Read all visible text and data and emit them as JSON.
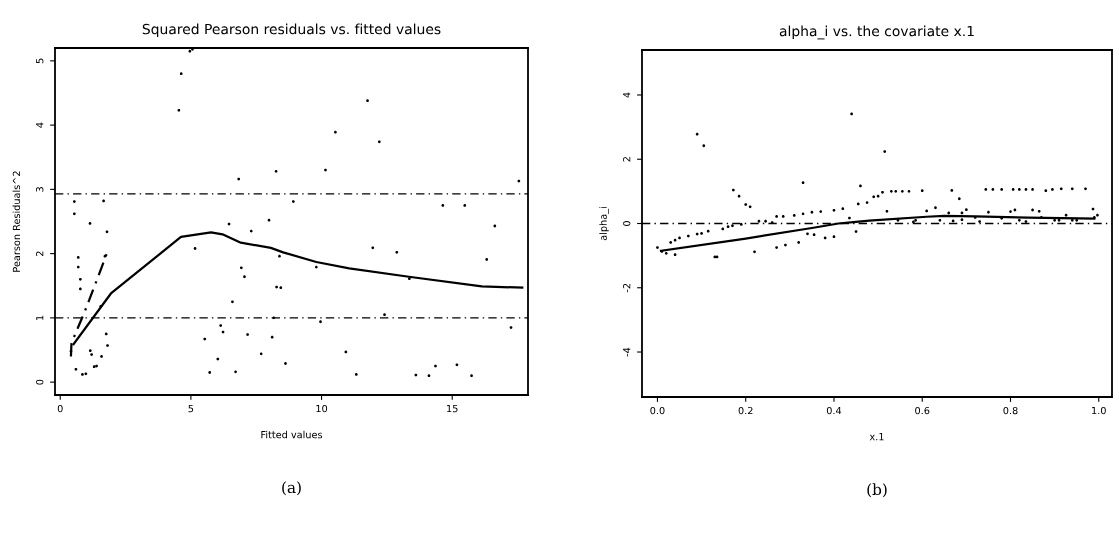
{
  "chart_data": [
    {
      "type": "scatter",
      "title": "Squared Pearson residuals vs. fitted values",
      "xlabel": "Fitted values",
      "ylabel": "Pearson Residuals^2",
      "xlim": [
        -0.2,
        17.9
      ],
      "ylim": [
        -0.2,
        5.2
      ],
      "xticks": [
        0,
        5,
        10,
        15
      ],
      "yticks": [
        0,
        1,
        2,
        3,
        4,
        5
      ],
      "grid": false,
      "legend": false,
      "series": [
        {
          "marker": "circle",
          "color": "#000000",
          "x": [
            0.54,
            0.54,
            1.14,
            1.66,
            1.79,
            0.69,
            0.69,
            0.77,
            0.77,
            1.71,
            1.55,
            1.76,
            1.81,
            1.15,
            1.2,
            1.58,
            0.6,
            0.85,
            0.98,
            1.3,
            1.39,
            0.41,
            4.54,
            4.63,
            4.96,
            5.06,
            5.16,
            5.53,
            5.72,
            6.03,
            6.14,
            6.23,
            6.46,
            6.59,
            6.71,
            6.83,
            6.93,
            7.05,
            7.17,
            7.31,
            7.69,
            7.99,
            8.11,
            8.26,
            8.39,
            8.28,
            8.44,
            8.17,
            8.62,
            8.92,
            9.8,
            9.96,
            10.15,
            10.53,
            10.93,
            11.33,
            11.76,
            11.96,
            12.21,
            12.41,
            12.88,
            13.36,
            13.61,
            14.11,
            14.36,
            14.64,
            15.18,
            15.48,
            15.74,
            16.32,
            16.63,
            17.25,
            17.55
          ],
          "values": [
            2.81,
            2.62,
            2.47,
            2.82,
            2.34,
            1.94,
            1.79,
            1.6,
            1.45,
            1.96,
            1.18,
            0.75,
            0.57,
            0.49,
            0.43,
            0.4,
            0.2,
            0.12,
            0.13,
            0.24,
            0.25,
            0.48,
            4.23,
            4.8,
            5.15,
            5.18,
            2.08,
            0.67,
            0.15,
            0.36,
            0.88,
            0.78,
            2.46,
            1.25,
            0.16,
            3.16,
            1.78,
            1.64,
            0.74,
            2.35,
            0.44,
            2.52,
            0.7,
            3.28,
            1.96,
            1.48,
            1.47,
            1.0,
            0.29,
            2.81,
            1.79,
            0.94,
            3.3,
            3.89,
            0.47,
            0.12,
            4.38,
            2.09,
            3.74,
            1.05,
            2.02,
            1.61,
            0.11,
            0.1,
            0.25,
            2.75,
            0.27,
            2.75,
            0.1,
            1.91,
            2.43,
            0.85,
            3.13
          ]
        },
        {
          "type": "line",
          "color": "#000000",
          "line_style": "solid",
          "x": [
            0.51,
            1.94,
            4.62,
            5.77,
            6.21,
            6.91,
            8.06,
            8.53,
            9.8,
            11.06,
            13.34,
            16.13,
            17.68
          ],
          "values": [
            0.59,
            1.38,
            2.26,
            2.33,
            2.3,
            2.17,
            2.09,
            2.02,
            1.87,
            1.77,
            1.64,
            1.49,
            1.47
          ]
        },
        {
          "type": "line",
          "color": "#000000",
          "line_style": "dashed",
          "x": [
            0.41,
            0.43,
            0.92,
            1.43,
            1.79
          ],
          "values": [
            0.4,
            0.61,
            1.08,
            1.62,
            2.01
          ]
        }
      ],
      "ref_lines": [
        {
          "axis": "y",
          "value": 2.93,
          "line_style": "dashed",
          "color": "#000000"
        },
        {
          "axis": "y",
          "value": 1.0,
          "line_style": "dashed",
          "color": "#000000"
        }
      ],
      "annotations": [
        "(a)"
      ]
    },
    {
      "type": "scatter",
      "title": "alpha_i vs. the covariate x.1",
      "xlabel": "x.1",
      "ylabel": "alpha_i",
      "xlim": [
        -0.035,
        1.03
      ],
      "ylim": [
        -5.4,
        5.4
      ],
      "xticks": [
        {
          "value": 0,
          "label": "0.0"
        },
        0.2,
        0.4,
        0.6,
        0.8,
        {
          "value": 1,
          "label": "1.0"
        }
      ],
      "yticks": [
        {
          "value": -4,
          "label": "-4"
        },
        {
          "value": -2,
          "label": "-2"
        },
        0,
        2,
        4
      ],
      "grid": false,
      "legend": false,
      "series": [
        {
          "marker": "circle",
          "color": "#000000",
          "x": [
            0.0,
            0.01,
            0.02,
            0.04,
            0.03,
            0.04,
            0.05,
            0.07,
            0.09,
            0.1,
            0.115,
            0.13,
            0.135,
            0.09,
            0.105,
            0.148,
            0.16,
            0.17,
            0.19,
            0.172,
            0.185,
            0.2,
            0.21,
            0.22,
            0.23,
            0.245,
            0.26,
            0.27,
            0.285,
            0.31,
            0.33,
            0.35,
            0.37,
            0.4,
            0.42,
            0.27,
            0.29,
            0.32,
            0.33,
            0.34,
            0.355,
            0.38,
            0.4,
            0.435,
            0.44,
            0.45,
            0.515,
            0.46,
            0.455,
            0.475,
            0.49,
            0.5,
            0.51,
            0.53,
            0.54,
            0.555,
            0.57,
            0.6,
            0.667,
            0.744,
            0.76,
            0.78,
            0.806,
            0.82,
            0.835,
            0.85,
            0.88,
            0.895,
            0.915,
            0.94,
            0.97,
            0.52,
            0.545,
            0.58,
            0.61,
            0.63,
            0.66,
            0.684,
            0.69,
            0.7,
            0.75,
            0.8,
            0.81,
            0.85,
            0.865,
            0.987,
            0.585,
            0.64,
            0.67,
            0.69,
            0.72,
            0.73,
            0.78,
            0.82,
            0.835,
            0.87,
            0.9,
            0.91,
            0.926,
            0.94,
            0.95,
            0.99,
            0.997
          ],
          "values": [
            -0.75,
            -0.87,
            -0.93,
            -0.97,
            -0.59,
            -0.52,
            -0.45,
            -0.39,
            -0.33,
            -0.31,
            -0.24,
            -1.04,
            -1.04,
            2.78,
            2.42,
            -0.17,
            -0.1,
            -0.07,
            -0.03,
            1.04,
            0.85,
            0.59,
            0.52,
            -0.88,
            0.07,
            0.07,
            0.03,
            0.22,
            0.22,
            0.25,
            0.3,
            0.35,
            0.37,
            0.41,
            0.46,
            -0.75,
            -0.67,
            -0.59,
            1.27,
            -0.32,
            -0.35,
            -0.45,
            -0.41,
            0.17,
            3.41,
            -0.25,
            2.24,
            1.17,
            0.61,
            0.65,
            0.83,
            0.85,
            0.97,
            1.0,
            1.0,
            1.0,
            1.0,
            1.02,
            1.03,
            1.06,
            1.06,
            1.06,
            1.06,
            1.06,
            1.06,
            1.06,
            1.02,
            1.06,
            1.08,
            1.08,
            1.08,
            0.38,
            0.1,
            0.05,
            0.39,
            0.49,
            0.33,
            0.77,
            0.33,
            0.43,
            0.35,
            0.37,
            0.42,
            0.42,
            0.38,
            0.45,
            0.1,
            0.1,
            0.08,
            0.12,
            0.19,
            0.06,
            0.16,
            0.1,
            0.06,
            0.19,
            0.1,
            0.1,
            0.26,
            0.1,
            0.1,
            0.19,
            0.26
          ]
        },
        {
          "type": "line",
          "color": "#000000",
          "line_style": "solid",
          "x": [
            0.008,
            0.2,
            0.35,
            0.41,
            0.45,
            0.48,
            0.61,
            0.65,
            0.72,
            0.84,
            0.99
          ],
          "values": [
            -0.85,
            -0.47,
            -0.14,
            0.0,
            0.05,
            0.09,
            0.21,
            0.24,
            0.22,
            0.18,
            0.15
          ]
        }
      ],
      "ref_lines": [
        {
          "axis": "y",
          "value": 0,
          "line_style": "dashed",
          "color": "#000000"
        }
      ],
      "annotations": [
        "(b)"
      ]
    }
  ]
}
